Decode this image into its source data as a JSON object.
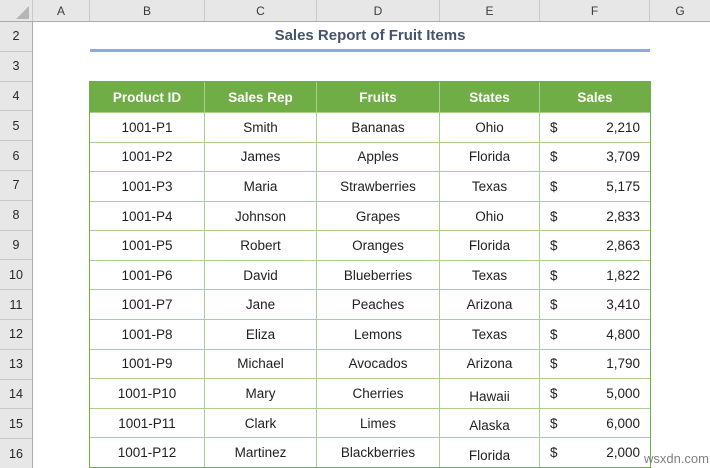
{
  "spreadsheet": {
    "column_headers": [
      "A",
      "B",
      "C",
      "D",
      "E",
      "F",
      "G"
    ],
    "row_headers": [
      "2",
      "3",
      "4",
      "5",
      "6",
      "7",
      "8",
      "9",
      "10",
      "11",
      "12",
      "13",
      "14",
      "15",
      "16"
    ]
  },
  "title": "Sales Report of Fruit Items",
  "table": {
    "headers": [
      "Product ID",
      "Sales Rep",
      "Fruits",
      "States",
      "Sales"
    ],
    "currency_symbol": "$",
    "rows": [
      {
        "product_id": "1001-P1",
        "sales_rep": "Smith",
        "fruit": "Bananas",
        "state": "Ohio",
        "sales": "2,210"
      },
      {
        "product_id": "1001-P2",
        "sales_rep": "James",
        "fruit": "Apples",
        "state": "Florida",
        "sales": "3,709"
      },
      {
        "product_id": "1001-P3",
        "sales_rep": "Maria",
        "fruit": "Strawberries",
        "state": "Texas",
        "sales": "5,175"
      },
      {
        "product_id": "1001-P4",
        "sales_rep": "Johnson",
        "fruit": "Grapes",
        "state": "Ohio",
        "sales": "2,833"
      },
      {
        "product_id": "1001-P5",
        "sales_rep": "Robert",
        "fruit": "Oranges",
        "state": "Florida",
        "sales": "2,863"
      },
      {
        "product_id": "1001-P6",
        "sales_rep": "David",
        "fruit": "Blueberries",
        "state": "Texas",
        "sales": "1,822"
      },
      {
        "product_id": "1001-P7",
        "sales_rep": "Jane",
        "fruit": "Peaches",
        "state": "Arizona",
        "sales": "3,410"
      },
      {
        "product_id": "1001-P8",
        "sales_rep": "Eliza",
        "fruit": "Lemons",
        "state": "Texas",
        "sales": "4,800"
      },
      {
        "product_id": "1001-P9",
        "sales_rep": "Michael",
        "fruit": "Avocados",
        "state": "Arizona",
        "sales": "1,790"
      },
      {
        "product_id": "1001-P10",
        "sales_rep": "Mary",
        "fruit": "Cherries",
        "state": "Hawaii",
        "sales": "5,000"
      },
      {
        "product_id": "1001-P11",
        "sales_rep": "Clark",
        "fruit": "Limes",
        "state": "Alaska",
        "sales": "6,000"
      },
      {
        "product_id": "1001-P12",
        "sales_rep": "Martinez",
        "fruit": "Blackberries",
        "state": "Florida",
        "sales": "2,000"
      }
    ]
  },
  "watermark": "wsxdn.com",
  "colors": {
    "table_header_bg": "#70AD47",
    "table_header_text": "#FFFFFF",
    "table_inner_border": "#A9D08E",
    "table_outer_border": "#70AD47",
    "title_text": "#44546A",
    "title_underline": "#8EA9DB",
    "chrome_header_bg": "#E7E7E7"
  }
}
